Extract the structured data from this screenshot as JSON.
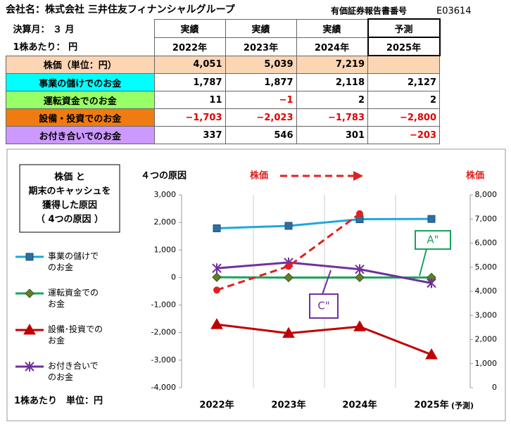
{
  "header": {
    "company": "会社名：株式会社 三井住友フィナンシャルグループ",
    "report_label": "有価証券報告書番号",
    "report_no": "E03614"
  },
  "table": {
    "header": [
      [
        "決算月： ３ 月",
        "実績",
        "実績",
        "実績",
        "予測"
      ],
      [
        "1株あたり：  円",
        "2022年",
        "2023年",
        "2024年",
        "2025年"
      ]
    ],
    "negative_color": "#e00000",
    "rows": [
      {
        "label": "株価（単位：円）",
        "color": "#fcd5b4",
        "cells": [
          "4,051",
          "5,039",
          "7,219"
        ]
      },
      {
        "label": "事業の儲けでのお金",
        "color": "#00ffff",
        "cells": [
          "1,787",
          "1,877",
          "2,118",
          "2,127"
        ]
      },
      {
        "label": "運転資金でのお金",
        "color": "#99ff66",
        "cells": [
          "11",
          "−1",
          "2",
          "2"
        ]
      },
      {
        "label": "設備・投資でのお金",
        "color": "#f07b10",
        "cells": [
          "−1,703",
          "−2,023",
          "−1,783",
          "−2,800"
        ]
      },
      {
        "label": "お付き合いでのお金",
        "color": "#cc99ff",
        "cells": [
          "337",
          "546",
          "301",
          "−203"
        ]
      }
    ]
  },
  "chart_data": {
    "type": "line",
    "title": "４つの原因",
    "note": [
      "株価 と",
      "期末のキャッシュを",
      "獲得した原因",
      "（ 4つの原因 ）"
    ],
    "unit_label": "1株あたり　単位：円",
    "y2_label": "株価",
    "categories": [
      "2022年",
      "2023年",
      "2024年",
      "2025年"
    ],
    "forecast_note": "(予測)",
    "ylim": [
      -4000,
      3000
    ],
    "yticks": [
      {
        "value": -4000,
        "label": "-4,000"
      },
      {
        "value": -3000,
        "label": "-3,000"
      },
      {
        "value": -2000,
        "label": "-2,000"
      },
      {
        "value": -1000,
        "label": "-1,000"
      },
      0,
      {
        "value": 1000,
        "label": "1,000"
      },
      {
        "value": 2000,
        "label": "2,000"
      },
      {
        "value": 3000,
        "label": "3,000"
      }
    ],
    "y2lim": [
      0,
      8000
    ],
    "y2ticks": [
      0,
      {
        "value": 1000,
        "label": "1,000"
      },
      {
        "value": 2000,
        "label": "2,000"
      },
      {
        "value": 3000,
        "label": "3,000"
      },
      {
        "value": 4000,
        "label": "4,000"
      },
      {
        "value": 5000,
        "label": "5,000"
      },
      {
        "value": 6000,
        "label": "6,000"
      },
      {
        "value": 7000,
        "label": "7,000"
      },
      {
        "value": 8000,
        "label": "8,000"
      }
    ],
    "series": [
      {
        "name": "事業の儲けで\nのお金",
        "color": "#1ea7dc",
        "marker": "square",
        "values": [
          1787,
          1877,
          2118,
          2127
        ]
      },
      {
        "name": "運転資金での\nお金",
        "color": "#1aa35a",
        "marker": "diamond",
        "values": [
          11,
          -1,
          2,
          2
        ]
      },
      {
        "name": "設備･投資での\nお金",
        "color": "#c00000",
        "marker": "triangle",
        "values": [
          -1703,
          -2023,
          -1783,
          -2800
        ]
      },
      {
        "name": "お付き合いで\nのお金",
        "color": "#7030a0",
        "marker": "star",
        "values": [
          337,
          546,
          301,
          -203
        ]
      },
      {
        "name": "株価",
        "color": "#e02020",
        "marker": "circle",
        "dashed": true,
        "axis": "y2",
        "values": [
          4051,
          5039,
          7219,
          null
        ]
      }
    ],
    "annotations": [
      "A\"",
      "C\""
    ]
  }
}
